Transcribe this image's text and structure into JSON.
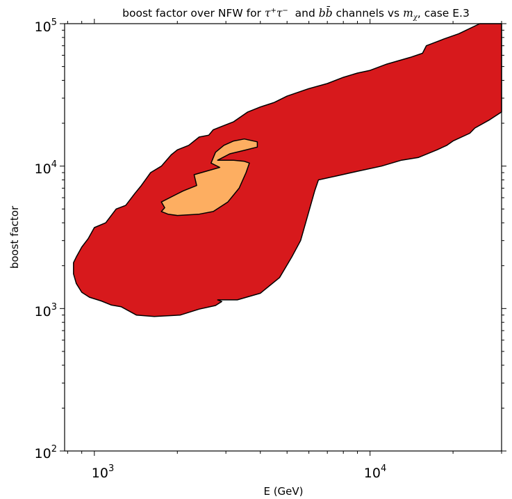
{
  "chart_data": {
    "type": "area",
    "title": {
      "prefix": "boost factor over NFW for ",
      "ch1_base": "τ",
      "ch1_sup1": "+",
      "ch1_base2": "τ",
      "ch1_sup2": "−",
      "middle": "  and ",
      "ch2_b": "b",
      "ch2_bbar": "b̄",
      "middle2": " channels vs ",
      "mass_base": "m",
      "mass_sub": "χ",
      "suffix": ", case E.3"
    },
    "xlabel": "E (GeV)",
    "ylabel": "boost factor",
    "xscale": "log",
    "yscale": "log",
    "xlim": [
      780,
      30000
    ],
    "ylim": [
      100,
      100000
    ],
    "grid": false,
    "x_ticks": [
      {
        "base": "10",
        "exp": "3"
      },
      {
        "base": "10",
        "exp": "4"
      }
    ],
    "y_ticks": [
      {
        "base": "10",
        "exp": "2"
      },
      {
        "base": "10",
        "exp": "3"
      },
      {
        "base": "10",
        "exp": "4"
      },
      {
        "base": "10",
        "exp": "5"
      }
    ],
    "series": [
      {
        "color": "#d7191c",
        "points": [
          [
            1250,
            1030
          ],
          [
            1420,
            900
          ],
          [
            1650,
            880
          ],
          [
            2050,
            900
          ],
          [
            2400,
            990
          ],
          [
            2750,
            1050
          ],
          [
            2900,
            1120
          ],
          [
            2800,
            1150
          ],
          [
            3300,
            1150
          ],
          [
            4000,
            1280
          ],
          [
            4700,
            1650
          ],
          [
            5200,
            2300
          ],
          [
            5600,
            3000
          ],
          [
            6000,
            4800
          ],
          [
            6300,
            6700
          ],
          [
            6500,
            8000
          ],
          [
            7500,
            8500
          ],
          [
            9000,
            9200
          ],
          [
            11000,
            10000
          ],
          [
            13000,
            11000
          ],
          [
            15000,
            11500
          ],
          [
            17500,
            13000
          ],
          [
            19000,
            14000
          ],
          [
            20000,
            15000
          ],
          [
            23000,
            17000
          ],
          [
            24000,
            18500
          ],
          [
            27000,
            21000
          ],
          [
            30000,
            24000
          ],
          [
            30000,
            100000
          ],
          [
            25000,
            100000
          ],
          [
            21000,
            85000
          ],
          [
            18500,
            78000
          ],
          [
            16000,
            70000
          ],
          [
            15500,
            62000
          ],
          [
            14000,
            58000
          ],
          [
            11500,
            52000
          ],
          [
            10000,
            47000
          ],
          [
            9000,
            45000
          ],
          [
            8000,
            42000
          ],
          [
            7000,
            38000
          ],
          [
            6000,
            35000
          ],
          [
            5000,
            31000
          ],
          [
            4500,
            28000
          ],
          [
            4000,
            26000
          ],
          [
            3600,
            24000
          ],
          [
            3200,
            20500
          ],
          [
            2900,
            19000
          ],
          [
            2700,
            18000
          ],
          [
            2600,
            16500
          ],
          [
            2400,
            16000
          ],
          [
            2200,
            14000
          ],
          [
            2000,
            13000
          ],
          [
            1900,
            12000
          ],
          [
            1750,
            10000
          ],
          [
            1600,
            9000
          ],
          [
            1480,
            7300
          ],
          [
            1400,
            6400
          ],
          [
            1300,
            5300
          ],
          [
            1200,
            5000
          ],
          [
            1100,
            4000
          ],
          [
            1000,
            3700
          ],
          [
            950,
            3100
          ],
          [
            900,
            2700
          ],
          [
            860,
            2300
          ],
          [
            840,
            2100
          ],
          [
            840,
            1750
          ],
          [
            860,
            1500
          ],
          [
            900,
            1300
          ],
          [
            960,
            1200
          ],
          [
            1060,
            1130
          ],
          [
            1150,
            1060
          ]
        ]
      },
      {
        "color": "#fdae61",
        "points": [
          [
            1750,
            5600
          ],
          [
            1800,
            5100
          ],
          [
            1750,
            4800
          ],
          [
            1850,
            4600
          ],
          [
            2000,
            4500
          ],
          [
            2400,
            4600
          ],
          [
            2700,
            4800
          ],
          [
            3050,
            5600
          ],
          [
            3350,
            7000
          ],
          [
            3550,
            9000
          ],
          [
            3650,
            10500
          ],
          [
            3500,
            10800
          ],
          [
            3200,
            11000
          ],
          [
            2800,
            11000
          ],
          [
            3100,
            12200
          ],
          [
            3500,
            12900
          ],
          [
            3900,
            13600
          ],
          [
            3900,
            14800
          ],
          [
            3500,
            15500
          ],
          [
            3200,
            15000
          ],
          [
            2950,
            14000
          ],
          [
            2750,
            12500
          ],
          [
            2650,
            10500
          ],
          [
            2850,
            9800
          ],
          [
            2300,
            8700
          ],
          [
            2350,
            7300
          ],
          [
            2100,
            6700
          ]
        ]
      }
    ]
  }
}
